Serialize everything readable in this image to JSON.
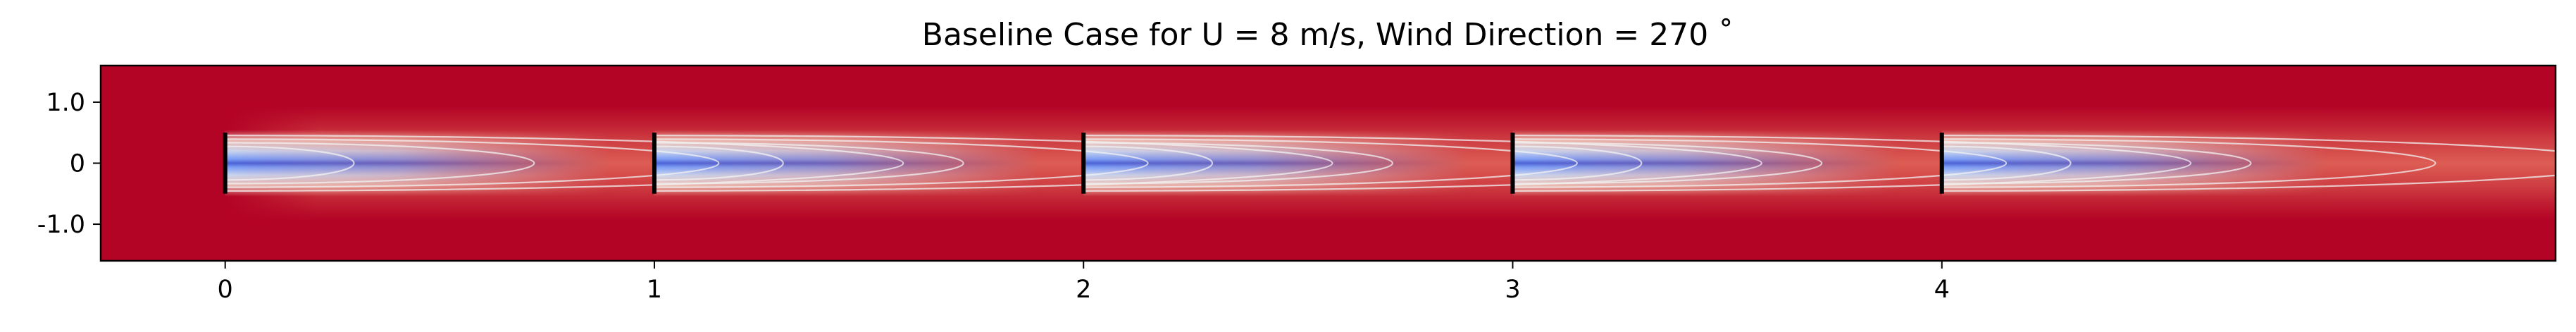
{
  "chart_data": {
    "type": "heatmap",
    "title": "Baseline Case for U = 8 m/s, Wind Direction = 270 ˚",
    "xlabel": "",
    "ylabel": "",
    "xlim": [
      -0.29,
      5.43
    ],
    "ylim": [
      -1.6,
      1.6
    ],
    "x_ticks": [
      0,
      1,
      2,
      3,
      4
    ],
    "x_tick_labels": [
      "0",
      "1",
      "2",
      "3",
      "4"
    ],
    "y_ticks": [
      1.0,
      0,
      -1.0
    ],
    "y_tick_labels": [
      "1.0",
      "0",
      "-1.0"
    ],
    "colormap": "coolwarm",
    "colors": {
      "freestream": "#b40426",
      "wake_core": "#3b4cc0",
      "contour": "#f2f2f2",
      "turbine": "#000000"
    },
    "turbines": [
      {
        "x": 0,
        "y_min": -0.5,
        "y_max": 0.5
      },
      {
        "x": 1,
        "y_min": -0.5,
        "y_max": 0.5
      },
      {
        "x": 2,
        "y_min": -0.5,
        "y_max": 0.5
      },
      {
        "x": 3,
        "y_min": -0.5,
        "y_max": 0.5
      },
      {
        "x": 4,
        "y_min": -0.5,
        "y_max": 0.5
      }
    ],
    "wake_length": 0.9,
    "contour_lengths": [
      0.3,
      0.72,
      1.15,
      1.58
    ],
    "grid": false,
    "legend": "none"
  }
}
